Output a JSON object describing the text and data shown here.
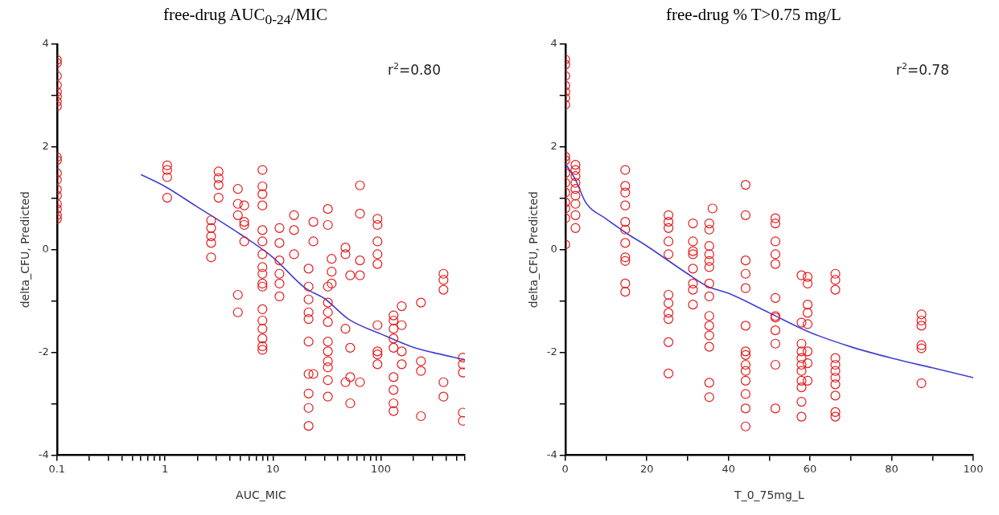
{
  "chart_data": [
    {
      "type": "scatter",
      "title": "free-drug AUC$_{0-24}$/MIC",
      "xlabel": "AUC_MIC",
      "ylabel": "delta_CFU, Predicted",
      "log": "x",
      "grid": false,
      "legend": false,
      "annotations": [
        "r$^{2}$=0.80"
      ],
      "xlim": [
        0.1,
        600
      ],
      "xticks": [
        0.1,
        {
          "value": 0.2,
          "label": null
        },
        {
          "value": 0.3,
          "label": null
        },
        {
          "value": 0.4,
          "label": null
        },
        {
          "value": 0.5,
          "label": null
        },
        {
          "value": 0.6,
          "label": null
        },
        {
          "value": 0.7,
          "label": null
        },
        {
          "value": 0.8,
          "label": null
        },
        {
          "value": 0.9,
          "label": null
        },
        1,
        {
          "value": 2,
          "label": null
        },
        {
          "value": 3,
          "label": null
        },
        {
          "value": 4,
          "label": null
        },
        {
          "value": 5,
          "label": null
        },
        {
          "value": 6,
          "label": null
        },
        {
          "value": 7,
          "label": null
        },
        {
          "value": 8,
          "label": null
        },
        {
          "value": 9,
          "label": null
        },
        10,
        {
          "value": 20,
          "label": null
        },
        {
          "value": 30,
          "label": null
        },
        {
          "value": 40,
          "label": null
        },
        {
          "value": 50,
          "label": null
        },
        {
          "value": 60,
          "label": null
        },
        {
          "value": 70,
          "label": null
        },
        {
          "value": 80,
          "label": null
        },
        {
          "value": 90,
          "label": null
        },
        100,
        {
          "value": 200,
          "label": null
        },
        {
          "value": 300,
          "label": null
        },
        {
          "value": 400,
          "label": null
        },
        {
          "value": 500,
          "label": null
        },
        {
          "value": 600,
          "label": null
        }
      ],
      "ylim": [
        -4,
        4
      ],
      "yticks": [
        -4,
        {
          "value": -3,
          "label": null
        },
        -2,
        {
          "value": -1,
          "label": null
        },
        0,
        {
          "value": 1,
          "label": null
        },
        2,
        {
          "value": 3,
          "label": null
        },
        4
      ],
      "series": [
        {
          "marker": "circle",
          "color": "#e41a1c",
          "x": [
            0.1,
            0.1,
            0.1,
            0.1,
            0.1,
            0.1,
            0.1,
            0.1,
            0.1,
            0.1,
            0.1,
            0.1,
            0.1,
            0.1,
            0.1,
            0.1,
            0.1,
            0.1,
            1.05,
            1.05,
            1.05,
            1.05,
            2.68,
            2.68,
            2.68,
            2.68,
            2.68,
            3.14,
            3.14,
            3.14,
            3.14,
            4.74,
            4.74,
            4.74,
            4.74,
            4.74,
            5.43,
            5.43,
            5.43,
            5.43,
            8,
            8,
            8,
            8,
            8,
            8,
            8,
            8,
            8,
            8,
            8,
            8,
            8,
            8,
            8,
            8,
            8,
            11.5,
            11.5,
            11.5,
            11.5,
            11.5,
            11.5,
            15.7,
            15.7,
            15.7,
            21.4,
            21.4,
            21.4,
            21.4,
            21.4,
            21.4,
            21.4,
            21.4,
            21.4,
            21.4,
            23.7,
            23.7,
            23.7,
            32.3,
            32.3,
            32.3,
            32.3,
            32.3,
            32.3,
            32.3,
            32.3,
            32.3,
            32.3,
            32.3,
            32.3,
            35,
            35,
            35,
            47,
            47,
            47,
            47,
            52,
            52,
            52,
            52,
            64,
            64,
            64,
            64,
            64,
            93,
            93,
            93,
            93,
            93,
            93,
            93,
            93,
            93,
            131,
            131,
            131,
            131,
            131,
            131,
            131,
            131,
            131,
            156,
            156,
            156,
            156,
            235,
            235,
            235,
            235,
            380,
            380,
            380,
            380,
            380,
            574,
            574,
            574,
            574,
            574
          ],
          "values": [
            3.69,
            3.63,
            3.38,
            3.2,
            3.07,
            2.98,
            2.88,
            2.79,
            1.8,
            1.74,
            1.49,
            1.36,
            1.17,
            1.05,
            0.89,
            0.79,
            0.67,
            0.6,
            1.64,
            1.55,
            1.41,
            1.01,
            0.57,
            0.42,
            0.26,
            0.13,
            -0.15,
            1.52,
            1.39,
            1.26,
            1.01,
            1.18,
            0.89,
            0.67,
            -0.88,
            -1.22,
            0.86,
            0.54,
            0.48,
            0.16,
            1.55,
            1.23,
            1.08,
            0.86,
            0.38,
            0.16,
            -0.09,
            -0.34,
            -0.47,
            -0.66,
            -0.72,
            -1.16,
            -1.38,
            -1.54,
            -1.73,
            -1.88,
            -1.95,
            0.42,
            0.13,
            -0.21,
            -0.47,
            -0.66,
            -0.91,
            0.67,
            0.38,
            -0.09,
            -0.37,
            -0.72,
            -0.97,
            -1.22,
            -1.35,
            -1.79,
            -2.42,
            -2.8,
            -3.08,
            -3.43,
            0.54,
            0.16,
            -2.42,
            0.79,
            0.48,
            -0.72,
            -1.03,
            -1.22,
            -1.41,
            -1.79,
            -1.98,
            -2.17,
            -2.29,
            -2.54,
            -2.86,
            -0.18,
            -0.43,
            -0.66,
            0.04,
            -0.09,
            -1.54,
            -2.58,
            -0.5,
            -1.91,
            -2.48,
            -2.99,
            1.25,
            0.7,
            -0.21,
            -0.5,
            -2.58,
            0.6,
            0.48,
            0.16,
            -0.09,
            -0.28,
            -1.47,
            -1.98,
            -2.04,
            -2.23,
            -1.28,
            -1.38,
            -1.54,
            -1.73,
            -1.91,
            -2.48,
            -2.73,
            -2.99,
            -3.14,
            -1.1,
            -1.47,
            -1.98,
            -2.23,
            -1.03,
            -2.17,
            -2.36,
            -3.24,
            -0.47,
            -0.59,
            -0.78,
            -2.58,
            -2.86,
            -2.1,
            -2.23,
            -2.39,
            -3.17,
            -3.33
          ]
        },
        {
          "type": "line",
          "marker": "none",
          "color": "#3f3fd0",
          "x": [
            0.6,
            1,
            2,
            3,
            5,
            10,
            20,
            30,
            50,
            100,
            200,
            300,
            600
          ],
          "values": [
            1.46,
            1.23,
            0.83,
            0.6,
            0.3,
            -0.15,
            -0.75,
            -0.95,
            -1.35,
            -1.64,
            -1.9,
            -2.0,
            -2.14
          ]
        }
      ]
    },
    {
      "type": "scatter",
      "title": "free-drug % T>0.75 mg/L",
      "xlabel": "T_0_75mg_L",
      "ylabel": "delta_CFU, Predicted",
      "grid": false,
      "legend": false,
      "annotations": [
        "r$^{2}$=0.78"
      ],
      "xlim": [
        0,
        100
      ],
      "xticks": [
        0,
        {
          "value": 10,
          "label": null
        },
        20,
        {
          "value": 30,
          "label": null
        },
        40,
        {
          "value": 50,
          "label": null
        },
        60,
        {
          "value": 70,
          "label": null
        },
        80,
        {
          "value": 90,
          "label": null
        },
        100
      ],
      "ylim": [
        -4,
        4
      ],
      "yticks": [
        -4,
        {
          "value": -3,
          "label": null
        },
        -2,
        {
          "value": -1,
          "label": null
        },
        0,
        {
          "value": 1,
          "label": null
        },
        2,
        {
          "value": 3,
          "label": null
        },
        4
      ],
      "series": [
        {
          "marker": "circle",
          "color": "#e41a1c",
          "x": [
            0,
            0,
            0,
            0,
            0,
            0,
            0,
            0,
            0,
            0,
            0,
            0,
            0,
            0,
            0,
            0,
            2.5,
            2.5,
            2.5,
            2.5,
            2.5,
            2.5,
            2.5,
            2.5,
            2.5,
            14.7,
            14.7,
            14.7,
            14.7,
            14.7,
            14.7,
            14.7,
            14.7,
            14.7,
            14.7,
            14.7,
            25.3,
            25.3,
            25.3,
            25.3,
            25.3,
            25.3,
            25.3,
            25.3,
            25.3,
            25.3,
            25.3,
            31.3,
            31.3,
            31.3,
            31.3,
            31.3,
            31.3,
            31.3,
            31.3,
            35.3,
            35.3,
            35.3,
            35.3,
            35.3,
            35.3,
            35.3,
            35.3,
            35.3,
            35.3,
            35.3,
            35.3,
            35.3,
            35.3,
            36.1,
            44.2,
            44.2,
            44.2,
            44.2,
            44.2,
            44.2,
            44.2,
            44.2,
            44.2,
            44.2,
            44.2,
            44.2,
            44.2,
            44.2,
            51.5,
            51.5,
            51.5,
            51.5,
            51.5,
            51.5,
            51.5,
            51.5,
            51.5,
            51.5,
            51.5,
            51.5,
            57.9,
            57.9,
            57.9,
            57.9,
            57.9,
            57.9,
            57.9,
            57.9,
            57.9,
            57.9,
            57.9,
            59.4,
            59.4,
            59.4,
            59.4,
            59.4,
            59.4,
            59.4,
            59.4,
            66.2,
            66.2,
            66.2,
            66.2,
            66.2,
            66.2,
            66.2,
            66.2,
            66.2,
            66.2,
            66.2,
            87.3,
            87.3,
            87.3,
            87.3,
            87.3,
            87.3
          ],
          "values": [
            3.7,
            3.6,
            3.38,
            3.19,
            3.07,
            2.95,
            2.82,
            1.81,
            1.74,
            1.49,
            1.3,
            1.11,
            0.92,
            0.8,
            0.61,
            0.1,
            1.65,
            1.55,
            1.43,
            1.3,
            1.18,
            1.05,
            0.89,
            0.67,
            0.42,
            1.55,
            1.24,
            1.11,
            0.86,
            0.54,
            0.39,
            0.13,
            -0.15,
            -0.22,
            -0.66,
            -0.82,
            0.67,
            0.54,
            0.42,
            0.16,
            -0.09,
            -0.88,
            -1.04,
            -1.23,
            -1.35,
            -1.8,
            -2.41,
            0.51,
            0.16,
            -0.03,
            -0.09,
            -0.37,
            -0.66,
            -0.78,
            -1.07,
            0.51,
            0.39,
            0.07,
            -0.09,
            -0.22,
            -0.34,
            -0.66,
            -0.91,
            -1.29,
            -1.48,
            -1.67,
            -1.89,
            -2.59,
            -2.87,
            0.8,
            1.26,
            0.67,
            -0.21,
            -0.47,
            -0.75,
            -1.48,
            -1.98,
            -2.05,
            -2.24,
            -2.36,
            -2.55,
            -2.81,
            -3.09,
            -3.44,
            0.61,
            0.51,
            0.16,
            -0.09,
            -0.28,
            -0.94,
            -1.29,
            -1.32,
            -1.57,
            -1.83,
            -2.24,
            -3.09,
            -0.5,
            -1.42,
            -1.83,
            -1.98,
            -2.11,
            -2.24,
            -2.36,
            -2.55,
            -2.68,
            -2.96,
            -3.25,
            -0.53,
            -0.66,
            -1.07,
            -1.23,
            -1.45,
            -1.98,
            -2.21,
            -2.55,
            -0.47,
            -0.59,
            -0.78,
            -2.11,
            -2.24,
            -2.36,
            -2.49,
            -2.62,
            -2.84,
            -3.16,
            -3.25,
            -1.26,
            -1.38,
            -1.48,
            -1.86,
            -1.92,
            -2.6
          ]
        },
        {
          "type": "line",
          "marker": "none",
          "color": "#3f3fd0",
          "x": [
            0,
            2.5,
            5,
            10,
            15,
            20,
            30,
            35,
            40,
            50,
            60,
            70,
            80,
            90,
            100
          ],
          "values": [
            1.68,
            1.36,
            0.92,
            0.6,
            0.32,
            0.07,
            -0.47,
            -0.72,
            -0.85,
            -1.23,
            -1.61,
            -1.89,
            -2.11,
            -2.3,
            -2.49
          ]
        }
      ]
    }
  ]
}
